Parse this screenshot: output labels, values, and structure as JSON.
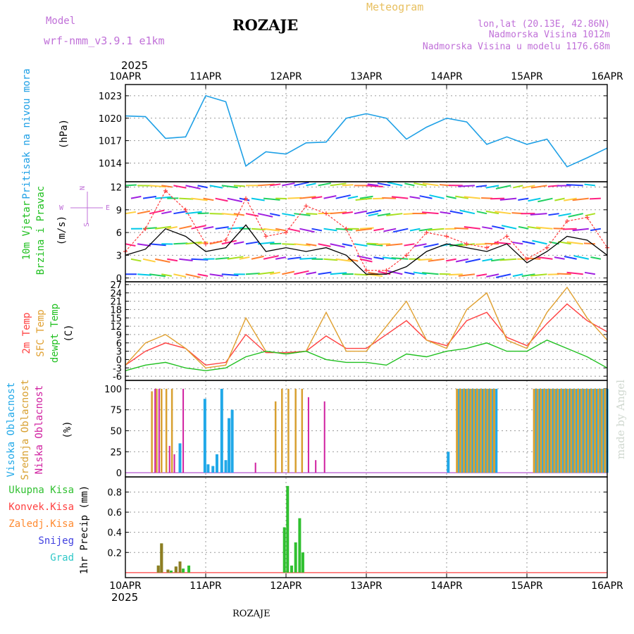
{
  "header": {
    "model_label": "Model",
    "model_name": "wrf-nmm_v3.9.1 e1km",
    "station": "ROZAJE",
    "meteogram": "Meteogram",
    "lonlat": "lon,lat (20.13E, 42.86N)",
    "elev1": "Nadmorska Visina 1012m",
    "elev2": "Nadmorska Visina u modelu 1176.68m",
    "year_top": "2025",
    "year_bottom": "2025",
    "footer_station": "ROZAJE",
    "credit": "made by Angel"
  },
  "colors": {
    "pressure": "#1ea0e6",
    "wind_speed": "#000000",
    "gust": "#ff3c3c",
    "t2m": "#ff4040",
    "sfc": "#e0a030",
    "dew": "#20c020",
    "high_cloud": "#20a8e8",
    "mid_cloud": "#d8a030",
    "low_cloud": "#d020a0",
    "precip_total": "#30c030",
    "precip_conv": "#ff4040",
    "precip_frz": "#ff8a30",
    "precip_snow": "#4040e0",
    "precip_grad": "#30c8c8"
  },
  "chart_data": [
    {
      "type": "line",
      "panel": "pressure",
      "ylabel_lines": [
        "Pritisak na nivou mora",
        "(hPa)"
      ],
      "x_ticks": [
        "10APR",
        "11APR",
        "12APR",
        "13APR",
        "14APR",
        "15APR",
        "16APR"
      ],
      "x_range_days": [
        0,
        6
      ],
      "y_ticks": [
        1014,
        1017,
        1020,
        1023
      ],
      "ylim": [
        1011.5,
        1024.5
      ],
      "series": [
        {
          "x": [
            0,
            0.25,
            0.5,
            0.75,
            1,
            1.25,
            1.5,
            1.75,
            2,
            2.25,
            2.5,
            2.75,
            3,
            3.25,
            3.5,
            3.75,
            4,
            4.25,
            4.5,
            4.75,
            5,
            5.25,
            5.5,
            5.75,
            6
          ],
          "values": [
            1020.3,
            1020.2,
            1017.3,
            1017.5,
            1023.0,
            1022.2,
            1013.6,
            1015.5,
            1015.2,
            1016.7,
            1016.8,
            1020.0,
            1020.6,
            1020.0,
            1017.2,
            1018.8,
            1020.0,
            1019.5,
            1016.5,
            1017.5,
            1016.5,
            1017.2,
            1013.5,
            1014.7,
            1016.0
          ]
        }
      ]
    },
    {
      "type": "line",
      "panel": "wind",
      "ylabel_lines": [
        "10m Vjetar",
        "Brzina i Pravac",
        "(m/s)"
      ],
      "compass_labels": {
        "north": "N",
        "south": "S",
        "west": "W",
        "east": "E"
      },
      "y_ticks": [
        0,
        3,
        6,
        9,
        12
      ],
      "ylim": [
        -0.5,
        12.7
      ],
      "series": [
        {
          "name": "speed",
          "x": [
            0,
            0.25,
            0.5,
            0.75,
            1,
            1.25,
            1.5,
            1.75,
            2,
            2.25,
            2.5,
            2.75,
            3,
            3.25,
            3.5,
            3.75,
            4,
            4.25,
            4.5,
            4.75,
            5,
            5.25,
            5.5,
            5.75,
            6
          ],
          "values": [
            3.0,
            3.8,
            6.5,
            5.5,
            3.5,
            4.0,
            7.0,
            3.5,
            4.0,
            3.5,
            4.0,
            3.0,
            0.5,
            0.5,
            1.5,
            3.5,
            4.5,
            4.0,
            3.5,
            4.5,
            2.0,
            3.5,
            5.5,
            5.0,
            3.0
          ]
        },
        {
          "name": "gust",
          "x": [
            0,
            0.25,
            0.5,
            0.75,
            1,
            1.25,
            1.5,
            1.75,
            2,
            2.25,
            2.5,
            2.75,
            3,
            3.25,
            3.5,
            3.75,
            4,
            4.25,
            4.5,
            4.75,
            5,
            5.25,
            5.5,
            5.75,
            6
          ],
          "values": [
            3.5,
            6.5,
            11.5,
            9.0,
            4.5,
            5.0,
            10.5,
            5.5,
            6.0,
            9.5,
            8.5,
            6.5,
            1.0,
            1.0,
            3.0,
            6.0,
            5.5,
            4.5,
            4.0,
            5.5,
            2.5,
            4.0,
            7.5,
            8.0,
            4.0
          ]
        }
      ]
    },
    {
      "type": "line",
      "panel": "temperature",
      "ylabel_lines": [
        "2m Temp",
        "SFC Temp",
        "dewpt Temp",
        "(C)"
      ],
      "y_ticks": [
        -6,
        -3,
        0,
        3,
        6,
        9,
        12,
        15,
        18,
        21,
        24,
        27
      ],
      "ylim": [
        -7.5,
        28
      ],
      "series": [
        {
          "name": "2m",
          "x": [
            0,
            0.25,
            0.5,
            0.75,
            1,
            1.25,
            1.5,
            1.75,
            2,
            2.25,
            2.5,
            2.75,
            3,
            3.25,
            3.5,
            3.75,
            4,
            4.25,
            4.5,
            4.75,
            5,
            5.25,
            5.5,
            5.75,
            6
          ],
          "values": [
            -2,
            3,
            6,
            4,
            -2,
            -1,
            9,
            2.5,
            2.5,
            3,
            8.5,
            4,
            4,
            9,
            14,
            7,
            5,
            14,
            17,
            8,
            5,
            13,
            20,
            14,
            10
          ]
        },
        {
          "name": "sfc",
          "x": [
            0,
            0.25,
            0.5,
            0.75,
            1,
            1.25,
            1.5,
            1.75,
            2,
            2.25,
            2.5,
            2.75,
            3,
            3.25,
            3.5,
            3.75,
            4,
            4.25,
            4.5,
            4.75,
            5,
            5.25,
            5.5,
            5.75,
            6
          ],
          "values": [
            -2,
            6,
            9,
            4,
            -3,
            -2,
            15,
            3,
            2,
            3,
            17,
            3,
            3,
            12,
            21,
            7,
            4,
            18,
            24,
            7,
            4,
            17,
            26,
            15,
            7
          ]
        },
        {
          "name": "dew",
          "x": [
            0,
            0.25,
            0.5,
            0.75,
            1,
            1.25,
            1.5,
            1.75,
            2,
            2.25,
            2.5,
            2.75,
            3,
            3.25,
            3.5,
            3.75,
            4,
            4.25,
            4.5,
            4.75,
            5,
            5.25,
            5.5,
            5.75,
            6
          ],
          "values": [
            -4,
            -2,
            -1,
            -3,
            -4,
            -3,
            1,
            3,
            2,
            3,
            0,
            -1,
            -1,
            -2,
            2,
            1,
            3,
            4,
            6,
            3,
            3,
            7,
            4,
            1,
            -3
          ]
        }
      ]
    },
    {
      "type": "bar",
      "panel": "clouds",
      "ylabel_lines": [
        "Visoka Oblacnost",
        "Srednja Oblacnost",
        "Niska Oblacnost",
        "(%)"
      ],
      "y_ticks": [
        0,
        25,
        50,
        75,
        100
      ],
      "ylim": [
        -5,
        110
      ],
      "series": [
        {
          "name": "Visoka",
          "x": [
            0.68,
            0.99,
            1.03,
            1.09,
            1.14,
            1.2,
            1.25,
            1.29,
            1.33,
            4.02,
            4.6
          ],
          "values": [
            35,
            88,
            10,
            8,
            22,
            100,
            15,
            65,
            75,
            25,
            27
          ]
        },
        {
          "name": "Srednja",
          "x": [
            0.33,
            0.39,
            0.45,
            0.51,
            0.58,
            1.87,
            1.95,
            2.03,
            2.12,
            2.2,
            5.09
          ],
          "values": [
            97,
            100,
            100,
            100,
            100,
            85,
            100,
            100,
            100,
            100,
            15
          ]
        },
        {
          "name": "Niska",
          "x": [
            0.37,
            0.42,
            0.55,
            0.61,
            0.72,
            1.62,
            2.28,
            2.37,
            2.48,
            5.84
          ],
          "values": [
            100,
            100,
            32,
            22,
            100,
            12,
            90,
            15,
            85,
            45
          ]
        }
      ],
      "blocks": [
        {
          "from": 4.13,
          "to": 4.63,
          "value": 100
        },
        {
          "from": 5.09,
          "to": 5.99,
          "value": 100
        }
      ]
    },
    {
      "type": "bar",
      "panel": "precip",
      "ylabel_lines": [
        "1hr Precip (mm)"
      ],
      "legend": [
        "Ukupna Kisa",
        "Konvek.Kisa",
        "Zaledj.Kisa",
        "Snijeg",
        "Grad"
      ],
      "y_ticks": [
        0.2,
        0.4,
        0.6,
        0.8
      ],
      "ylim": [
        -0.05,
        0.95
      ],
      "series": [
        {
          "name": "Ukupna Kisa",
          "x": [
            0.41,
            0.45,
            0.53,
            0.57,
            0.63,
            0.68,
            0.72,
            0.79,
            1.98,
            2.02,
            2.07,
            2.12,
            2.17,
            2.21
          ],
          "values": [
            0.07,
            0.29,
            0.03,
            0.02,
            0.06,
            0.11,
            0.04,
            0.07,
            0.45,
            0.86,
            0.07,
            0.3,
            0.54,
            0.2
          ]
        },
        {
          "name": "Zaledj.Kisa",
          "x": [
            0.41,
            0.45,
            0.53,
            0.63,
            0.68
          ],
          "values": [
            0.07,
            0.29,
            0.03,
            0.06,
            0.11
          ]
        }
      ]
    }
  ]
}
